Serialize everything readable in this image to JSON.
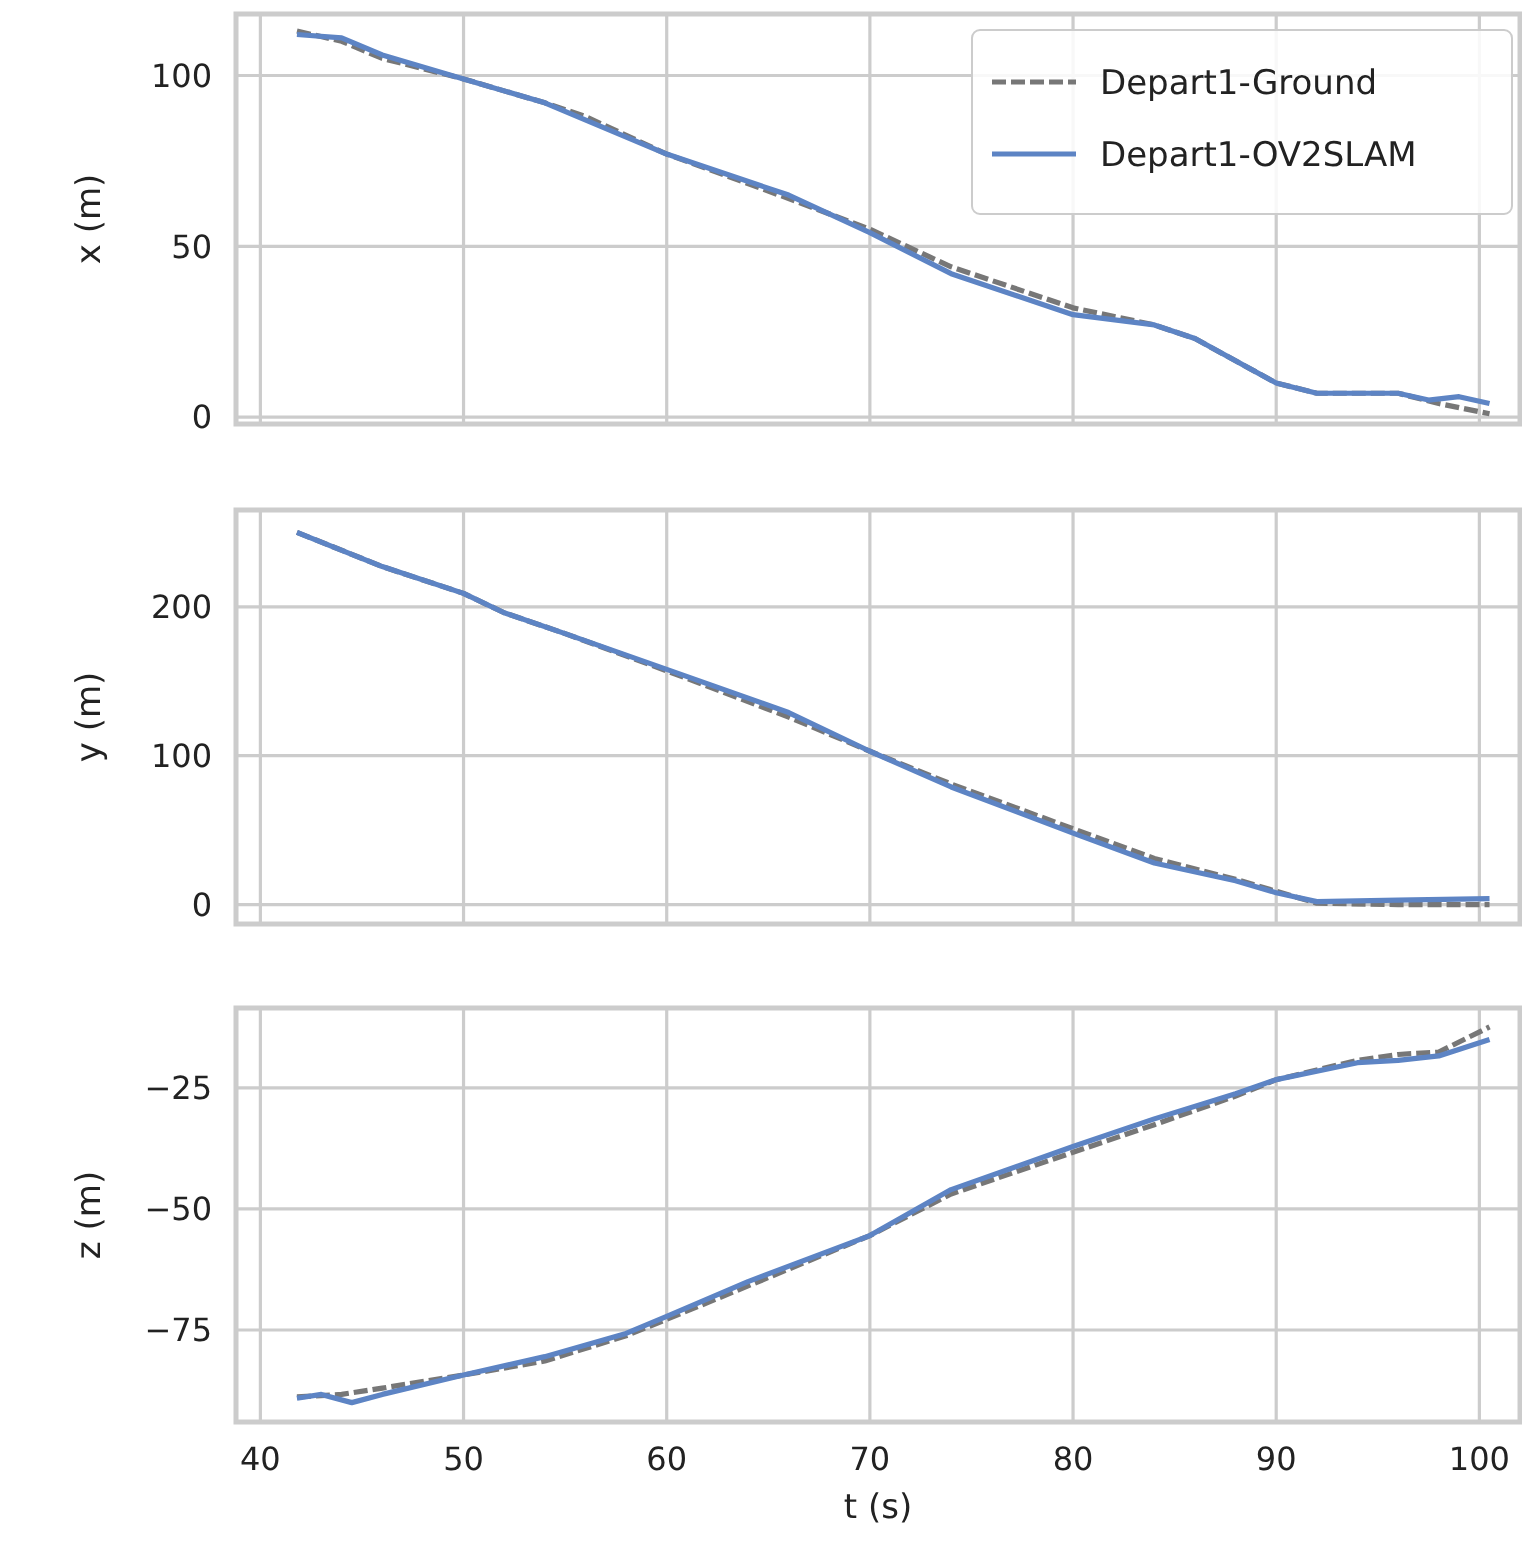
{
  "chart_data": [
    {
      "type": "line",
      "ylabel": "x (m)",
      "xlim": [
        38.8,
        102
      ],
      "xticks": [
        40,
        50,
        60,
        70,
        80,
        90,
        100
      ],
      "ylim": [
        -2,
        118
      ],
      "yticks": [
        0,
        50,
        100
      ],
      "grid": true,
      "legend": "top right",
      "tick_labels": "y",
      "series": [
        {
          "name": "Depart1-Ground",
          "color": "#777777",
          "line_style": "dashed",
          "x": [
            41.8,
            44,
            46,
            50,
            54,
            56,
            60,
            66,
            70,
            74,
            80,
            84,
            86,
            90,
            92,
            96,
            98,
            100.5
          ],
          "values": [
            113,
            110,
            105,
            99,
            92,
            88,
            77,
            64,
            55,
            44,
            32,
            27,
            23,
            10,
            7,
            7,
            4,
            1
          ]
        },
        {
          "name": "Depart1-OV2SLAM",
          "color": "#5d84c4",
          "line_style": "solid",
          "x": [
            41.8,
            44,
            46,
            50,
            54,
            60,
            66,
            70,
            74,
            80,
            84,
            86,
            90,
            92,
            96,
            97.5,
            99,
            100.5
          ],
          "values": [
            112,
            111,
            106,
            99,
            92,
            77,
            65,
            54,
            42,
            30,
            27,
            23,
            10,
            7,
            7,
            5,
            6,
            4
          ]
        }
      ]
    },
    {
      "type": "line",
      "ylabel": "y (m)",
      "xlim": [
        38.8,
        102
      ],
      "xticks": [
        40,
        50,
        60,
        70,
        80,
        90,
        100
      ],
      "ylim": [
        -13,
        265
      ],
      "yticks": [
        0,
        100,
        200
      ],
      "grid": true,
      "tick_labels": "y",
      "series": [
        {
          "color": "#777777",
          "line_style": "dashed",
          "x": [
            41.8,
            46,
            50,
            52,
            55,
            60,
            66,
            70,
            74,
            80,
            84,
            88,
            90,
            92,
            96,
            100.5
          ],
          "values": [
            250,
            227,
            209,
            196,
            182,
            157,
            126,
            103,
            81,
            51,
            31,
            17,
            9,
            1,
            0,
            0
          ]
        },
        {
          "color": "#5d84c4",
          "line_style": "solid",
          "x": [
            41.8,
            46,
            50,
            52,
            55,
            60,
            66,
            70,
            74,
            80,
            84,
            88,
            90,
            92,
            96,
            100.5
          ],
          "values": [
            250,
            227,
            209,
            196,
            182,
            158,
            129,
            103,
            79,
            48,
            28,
            16,
            8,
            2,
            3,
            4
          ]
        }
      ]
    },
    {
      "type": "line",
      "ylabel": "z (m)",
      "xlabel": "t (s)",
      "xlim": [
        38.8,
        102
      ],
      "xticks": [
        40,
        50,
        60,
        70,
        80,
        90,
        100
      ],
      "ylim": [
        -94,
        -8.5
      ],
      "yticks": [
        {
          "value": -75,
          "label": "−75"
        },
        {
          "value": -50,
          "label": "−50"
        },
        {
          "value": -25,
          "label": "−25"
        }
      ],
      "grid": true,
      "series": [
        {
          "color": "#777777",
          "line_style": "dashed",
          "x": [
            41.8,
            44,
            46,
            50,
            54,
            58,
            60,
            64,
            70,
            74,
            80,
            84,
            88,
            90,
            94,
            96,
            98,
            100.5
          ],
          "values": [
            -88.8,
            -88.3,
            -87,
            -84.3,
            -81.4,
            -76.2,
            -72.8,
            -65.9,
            -55.5,
            -46.9,
            -38.3,
            -32.6,
            -26.7,
            -23.3,
            -19.3,
            -18.1,
            -17.6,
            -12.4
          ]
        },
        {
          "color": "#5d84c4",
          "line_style": "solid",
          "x": [
            41.8,
            43,
            44.5,
            46,
            50,
            54,
            58,
            60,
            64,
            70,
            74,
            80,
            84,
            88,
            90,
            94,
            96,
            98,
            100.5
          ],
          "values": [
            -89.1,
            -88.3,
            -90,
            -88.3,
            -84.3,
            -80.5,
            -75.7,
            -72.2,
            -65,
            -55.5,
            -46,
            -37.1,
            -31.4,
            -26.2,
            -23.3,
            -19.8,
            -19.3,
            -18.4,
            -15
          ]
        }
      ]
    }
  ]
}
